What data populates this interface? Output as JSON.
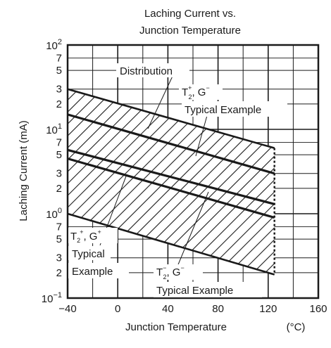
{
  "chart_data": {
    "type": "line",
    "title": [
      "Laching Current vs.",
      "Junction Temperature"
    ],
    "xlabel": "Junction Temperature",
    "xunit": "(°C)",
    "ylabel": "Laching Current (mA)",
    "x_range": [
      -40,
      160
    ],
    "y_range": [
      0.1,
      100
    ],
    "y_scale": "log",
    "grid": true,
    "x_ticks": [
      {
        "value": -40,
        "label": "−40"
      },
      {
        "value": 0,
        "label": "0"
      },
      {
        "value": 40,
        "label": "40"
      },
      {
        "value": 80,
        "label": "80"
      },
      {
        "value": 120,
        "label": "120"
      },
      {
        "value": 160,
        "label": "160"
      }
    ],
    "y_decades": [
      {
        "value": 0.1,
        "base": "10",
        "exp": "−1"
      },
      {
        "value": 1,
        "base": "10",
        "exp": "0"
      },
      {
        "value": 10,
        "base": "10",
        "exp": "1"
      },
      {
        "value": 100,
        "base": "10",
        "exp": "2"
      }
    ],
    "y_minor_labels": [
      {
        "value": 0.2,
        "label": "2"
      },
      {
        "value": 0.3,
        "label": "3"
      },
      {
        "value": 0.5,
        "label": "5"
      },
      {
        "value": 0.7,
        "label": "7"
      },
      {
        "value": 2,
        "label": "2"
      },
      {
        "value": 3,
        "label": "3"
      },
      {
        "value": 5,
        "label": "5"
      },
      {
        "value": 7,
        "label": "7"
      },
      {
        "value": 20,
        "label": "2"
      },
      {
        "value": 30,
        "label": "3"
      },
      {
        "value": 50,
        "label": "5"
      },
      {
        "value": 70,
        "label": "7"
      }
    ],
    "series": [
      {
        "x": [
          -40,
          125
        ],
        "y": [
          30,
          6
        ]
      },
      {
        "x": [
          -40,
          125
        ],
        "y": [
          15,
          3
        ]
      },
      {
        "x": [
          -40,
          125
        ],
        "y": [
          5.7,
          1.3
        ]
      },
      {
        "x": [
          -40,
          125
        ],
        "y": [
          4.5,
          0.9
        ]
      },
      {
        "x": [
          -40,
          125
        ],
        "y": [
          1,
          0.19
        ]
      }
    ],
    "distribution_band": {
      "x": [
        -40,
        125
      ],
      "upper": [
        30,
        6
      ],
      "lower": [
        1,
        0.19
      ]
    },
    "annotations": {
      "distribution": "Distribution",
      "t2p_g": {
        "t": "T",
        "sub": "2",
        "sup": "+",
        "rest": ", G",
        "rest_sup": "−"
      },
      "t2p_g_desc": "Typical Example",
      "t2p_gp": {
        "t": "T",
        "sub": "2",
        "sup": "+",
        "rest": ", G",
        "rest_sup": "+"
      },
      "t2p_gp_desc": [
        "Typical",
        "Example"
      ],
      "t2m_g": {
        "t": "T",
        "sub": "2",
        "sup": "−",
        "rest": ", G",
        "rest_sup": "−"
      },
      "t2m_g_desc": "Typical Example"
    }
  }
}
